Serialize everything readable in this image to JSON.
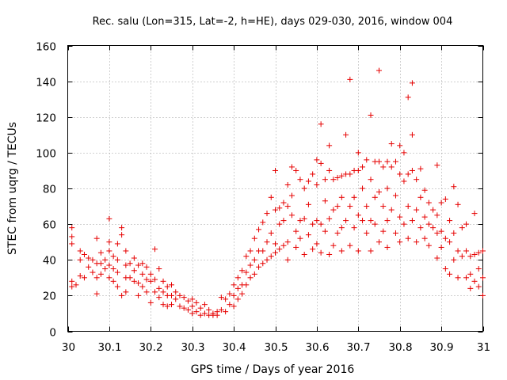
{
  "chart_data": {
    "type": "scatter",
    "title": "Rec. salu (Lon=315, Lat=-2, h=HE), days 029-030, 2016, window 004",
    "xlabel": "GPS time / Days of year 2016",
    "ylabel": "STEC from uqrg / TECUs",
    "xlim": [
      30,
      31
    ],
    "ylim": [
      0,
      160
    ],
    "xticks": [
      30,
      30.1,
      30.2,
      30.3,
      30.4,
      30.5,
      30.6,
      30.7,
      30.8,
      30.9,
      31
    ],
    "xtick_labels": [
      "30",
      "30.1",
      "30.2",
      "30.3",
      "30.4",
      "30.5",
      "30.6",
      "30.7",
      "30.8",
      "30.9",
      "31"
    ],
    "yticks": [
      0,
      20,
      40,
      60,
      80,
      100,
      120,
      140,
      160
    ],
    "ytick_labels": [
      "0",
      "20",
      "40",
      "60",
      "80",
      "100",
      "120",
      "140",
      "160"
    ],
    "grid": true,
    "marker": "+",
    "color": "#e60000",
    "series": [
      {
        "name": "STEC",
        "points": [
          [
            30.01,
            58
          ],
          [
            30.01,
            53
          ],
          [
            30.01,
            49
          ],
          [
            30.01,
            28
          ],
          [
            30.01,
            25
          ],
          [
            30.02,
            26
          ],
          [
            30.03,
            45
          ],
          [
            30.03,
            40
          ],
          [
            30.03,
            31
          ],
          [
            30.04,
            43
          ],
          [
            30.04,
            30
          ],
          [
            30.05,
            41
          ],
          [
            30.05,
            36
          ],
          [
            30.06,
            40
          ],
          [
            30.06,
            33
          ],
          [
            30.07,
            52
          ],
          [
            30.07,
            38
          ],
          [
            30.07,
            30
          ],
          [
            30.07,
            21
          ],
          [
            30.08,
            44
          ],
          [
            30.08,
            38
          ],
          [
            30.08,
            32
          ],
          [
            30.09,
            40
          ],
          [
            30.09,
            35
          ],
          [
            30.1,
            63
          ],
          [
            30.1,
            50
          ],
          [
            30.1,
            45
          ],
          [
            30.1,
            37
          ],
          [
            30.1,
            30
          ],
          [
            30.11,
            42
          ],
          [
            30.11,
            35
          ],
          [
            30.11,
            28
          ],
          [
            30.12,
            49
          ],
          [
            30.12,
            40
          ],
          [
            30.12,
            33
          ],
          [
            30.12,
            25
          ],
          [
            30.13,
            58
          ],
          [
            30.13,
            54
          ],
          [
            30.13,
            20
          ],
          [
            30.14,
            45
          ],
          [
            30.14,
            37
          ],
          [
            30.14,
            30
          ],
          [
            30.14,
            22
          ],
          [
            30.15,
            38
          ],
          [
            30.15,
            30
          ],
          [
            30.16,
            41
          ],
          [
            30.16,
            34
          ],
          [
            30.16,
            28
          ],
          [
            30.17,
            37
          ],
          [
            30.17,
            27
          ],
          [
            30.17,
            20
          ],
          [
            30.18,
            38
          ],
          [
            30.18,
            32
          ],
          [
            30.18,
            25
          ],
          [
            30.19,
            36
          ],
          [
            30.19,
            29
          ],
          [
            30.19,
            22
          ],
          [
            30.2,
            32
          ],
          [
            30.2,
            28
          ],
          [
            30.2,
            16
          ],
          [
            30.21,
            46
          ],
          [
            30.21,
            29
          ],
          [
            30.21,
            22
          ],
          [
            30.22,
            35
          ],
          [
            30.22,
            24
          ],
          [
            30.22,
            19
          ],
          [
            30.23,
            28
          ],
          [
            30.23,
            22
          ],
          [
            30.23,
            15
          ],
          [
            30.24,
            25
          ],
          [
            30.24,
            20
          ],
          [
            30.24,
            14
          ],
          [
            30.25,
            26
          ],
          [
            30.25,
            20
          ],
          [
            30.25,
            15
          ],
          [
            30.26,
            22
          ],
          [
            30.26,
            18
          ],
          [
            30.27,
            20
          ],
          [
            30.27,
            14
          ],
          [
            30.28,
            19
          ],
          [
            30.28,
            13
          ],
          [
            30.29,
            17
          ],
          [
            30.29,
            12
          ],
          [
            30.3,
            18
          ],
          [
            30.3,
            14
          ],
          [
            30.3,
            10
          ],
          [
            30.31,
            16
          ],
          [
            30.31,
            11
          ],
          [
            30.32,
            13
          ],
          [
            30.32,
            9
          ],
          [
            30.33,
            15
          ],
          [
            30.33,
            10
          ],
          [
            30.34,
            12
          ],
          [
            30.34,
            9
          ],
          [
            30.35,
            10
          ],
          [
            30.35,
            9
          ],
          [
            30.36,
            11
          ],
          [
            30.36,
            9
          ],
          [
            30.37,
            19
          ],
          [
            30.37,
            12
          ],
          [
            30.38,
            18
          ],
          [
            30.38,
            11
          ],
          [
            30.39,
            21
          ],
          [
            30.39,
            15
          ],
          [
            30.4,
            26
          ],
          [
            30.4,
            20
          ],
          [
            30.4,
            14
          ],
          [
            30.41,
            30
          ],
          [
            30.41,
            24
          ],
          [
            30.41,
            18
          ],
          [
            30.42,
            34
          ],
          [
            30.42,
            26
          ],
          [
            30.42,
            21
          ],
          [
            30.43,
            42
          ],
          [
            30.43,
            33
          ],
          [
            30.43,
            26
          ],
          [
            30.44,
            45
          ],
          [
            30.44,
            37
          ],
          [
            30.44,
            30
          ],
          [
            30.45,
            52
          ],
          [
            30.45,
            40
          ],
          [
            30.45,
            32
          ],
          [
            30.46,
            57
          ],
          [
            30.46,
            45
          ],
          [
            30.46,
            36
          ],
          [
            30.47,
            61
          ],
          [
            30.47,
            45
          ],
          [
            30.47,
            38
          ],
          [
            30.48,
            66
          ],
          [
            30.48,
            50
          ],
          [
            30.48,
            40
          ],
          [
            30.49,
            75
          ],
          [
            30.49,
            55
          ],
          [
            30.49,
            42
          ],
          [
            30.5,
            90
          ],
          [
            30.5,
            68
          ],
          [
            30.5,
            49
          ],
          [
            30.5,
            44
          ],
          [
            30.51,
            69
          ],
          [
            30.51,
            60
          ],
          [
            30.51,
            46
          ],
          [
            30.52,
            72
          ],
          [
            30.52,
            62
          ],
          [
            30.52,
            48
          ],
          [
            30.53,
            82
          ],
          [
            30.53,
            70
          ],
          [
            30.53,
            50
          ],
          [
            30.53,
            40
          ],
          [
            30.54,
            92
          ],
          [
            30.54,
            76
          ],
          [
            30.54,
            65
          ],
          [
            30.55,
            90
          ],
          [
            30.55,
            56
          ],
          [
            30.55,
            47
          ],
          [
            30.56,
            85
          ],
          [
            30.56,
            62
          ],
          [
            30.56,
            52
          ],
          [
            30.57,
            80
          ],
          [
            30.57,
            63
          ],
          [
            30.57,
            43
          ],
          [
            30.58,
            84
          ],
          [
            30.58,
            71
          ],
          [
            30.58,
            54
          ],
          [
            30.59,
            88
          ],
          [
            30.59,
            60
          ],
          [
            30.59,
            46
          ],
          [
            30.6,
            96
          ],
          [
            30.6,
            82
          ],
          [
            30.6,
            62
          ],
          [
            30.6,
            49
          ],
          [
            30.61,
            116
          ],
          [
            30.61,
            94
          ],
          [
            30.61,
            60
          ],
          [
            30.61,
            44
          ],
          [
            30.62,
            85
          ],
          [
            30.62,
            73
          ],
          [
            30.62,
            56
          ],
          [
            30.63,
            104
          ],
          [
            30.63,
            90
          ],
          [
            30.63,
            63
          ],
          [
            30.63,
            43
          ],
          [
            30.64,
            85
          ],
          [
            30.64,
            68
          ],
          [
            30.64,
            48
          ],
          [
            30.65,
            86
          ],
          [
            30.65,
            70
          ],
          [
            30.65,
            55
          ],
          [
            30.66,
            87
          ],
          [
            30.66,
            75
          ],
          [
            30.66,
            58
          ],
          [
            30.66,
            45
          ],
          [
            30.67,
            110
          ],
          [
            30.67,
            88
          ],
          [
            30.67,
            62
          ],
          [
            30.68,
            141
          ],
          [
            30.68,
            88
          ],
          [
            30.68,
            70
          ],
          [
            30.68,
            48
          ],
          [
            30.69,
            90
          ],
          [
            30.69,
            75
          ],
          [
            30.69,
            58
          ],
          [
            30.7,
            100
          ],
          [
            30.7,
            90
          ],
          [
            30.7,
            65
          ],
          [
            30.7,
            45
          ],
          [
            30.71,
            92
          ],
          [
            30.71,
            80
          ],
          [
            30.71,
            62
          ],
          [
            30.72,
            96
          ],
          [
            30.72,
            70
          ],
          [
            30.72,
            55
          ],
          [
            30.73,
            121
          ],
          [
            30.73,
            85
          ],
          [
            30.73,
            62
          ],
          [
            30.73,
            45
          ],
          [
            30.74,
            95
          ],
          [
            30.74,
            75
          ],
          [
            30.74,
            60
          ],
          [
            30.75,
            146
          ],
          [
            30.75,
            95
          ],
          [
            30.75,
            78
          ],
          [
            30.75,
            50
          ],
          [
            30.76,
            92
          ],
          [
            30.76,
            70
          ],
          [
            30.76,
            56
          ],
          [
            30.77,
            95
          ],
          [
            30.77,
            80
          ],
          [
            30.77,
            62
          ],
          [
            30.77,
            47
          ],
          [
            30.78,
            105
          ],
          [
            30.78,
            92
          ],
          [
            30.78,
            68
          ],
          [
            30.79,
            95
          ],
          [
            30.79,
            76
          ],
          [
            30.79,
            55
          ],
          [
            30.8,
            104
          ],
          [
            30.8,
            88
          ],
          [
            30.8,
            64
          ],
          [
            30.8,
            50
          ],
          [
            30.81,
            100
          ],
          [
            30.81,
            84
          ],
          [
            30.81,
            60
          ],
          [
            30.82,
            131
          ],
          [
            30.82,
            88
          ],
          [
            30.82,
            70
          ],
          [
            30.82,
            52
          ],
          [
            30.83,
            139
          ],
          [
            30.83,
            110
          ],
          [
            30.83,
            90
          ],
          [
            30.83,
            62
          ],
          [
            30.84,
            85
          ],
          [
            30.84,
            68
          ],
          [
            30.84,
            50
          ],
          [
            30.85,
            91
          ],
          [
            30.85,
            75
          ],
          [
            30.85,
            58
          ],
          [
            30.86,
            79
          ],
          [
            30.86,
            64
          ],
          [
            30.86,
            52
          ],
          [
            30.87,
            72
          ],
          [
            30.87,
            60
          ],
          [
            30.87,
            48
          ],
          [
            30.88,
            68
          ],
          [
            30.88,
            58
          ],
          [
            30.89,
            93
          ],
          [
            30.89,
            65
          ],
          [
            30.89,
            55
          ],
          [
            30.89,
            41
          ],
          [
            30.9,
            72
          ],
          [
            30.9,
            56
          ],
          [
            30.9,
            47
          ],
          [
            30.91,
            74
          ],
          [
            30.91,
            52
          ],
          [
            30.91,
            35
          ],
          [
            30.92,
            62
          ],
          [
            30.92,
            50
          ],
          [
            30.92,
            32
          ],
          [
            30.93,
            81
          ],
          [
            30.93,
            55
          ],
          [
            30.93,
            40
          ],
          [
            30.94,
            71
          ],
          [
            30.94,
            45
          ],
          [
            30.94,
            30
          ],
          [
            30.95,
            58
          ],
          [
            30.95,
            42
          ],
          [
            30.96,
            60
          ],
          [
            30.96,
            45
          ],
          [
            30.96,
            30
          ],
          [
            30.97,
            42
          ],
          [
            30.97,
            32
          ],
          [
            30.97,
            24
          ],
          [
            30.98,
            66
          ],
          [
            30.98,
            43
          ],
          [
            30.98,
            28
          ],
          [
            30.99,
            44
          ],
          [
            30.99,
            35
          ],
          [
            30.99,
            25
          ],
          [
            31.0,
            45
          ],
          [
            31.0,
            30
          ],
          [
            31.0,
            20
          ]
        ]
      }
    ]
  }
}
